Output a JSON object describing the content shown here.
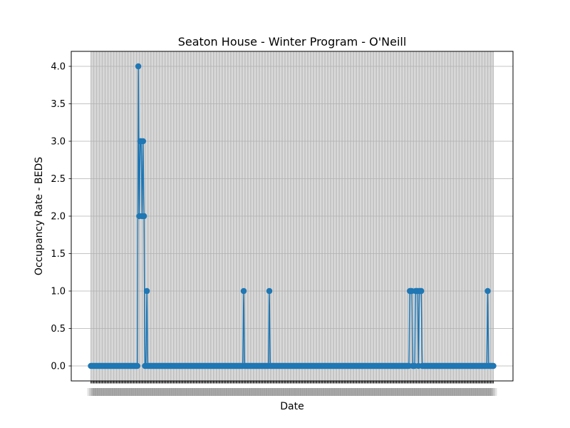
{
  "chart_data": {
    "type": "line",
    "title": "Seaton House - Winter Program - O'Neill",
    "xlabel": "Date",
    "ylabel": "Occupancy Rate - BEDS",
    "ylim": [
      -0.2,
      4.2
    ],
    "yticks": [
      0.0,
      0.5,
      1.0,
      1.5,
      2.0,
      2.5,
      3.0,
      3.5,
      4.0
    ],
    "ytick_labels": [
      "0.0",
      "0.5",
      "1.0",
      "1.5",
      "2.0",
      "2.5",
      "3.0",
      "3.5",
      "4.0"
    ],
    "grid": true,
    "x_ticklabels_note": "one tick per date; labels overlap and are illegible",
    "series": [
      {
        "color": "#1f77b4",
        "marker": "circle",
        "values": [
          0,
          0,
          0,
          0,
          0,
          0,
          0,
          0,
          0,
          0,
          0,
          0,
          0,
          0,
          0,
          0,
          0,
          0,
          0,
          0,
          0,
          0,
          0,
          0,
          0,
          0,
          0,
          0,
          0,
          0,
          0,
          0,
          0,
          0,
          0,
          0,
          0,
          0,
          0,
          0,
          0,
          0,
          0,
          0,
          0,
          0,
          0,
          0,
          0,
          0,
          4,
          2,
          3,
          3,
          2,
          3,
          2,
          0,
          0,
          1,
          0,
          0,
          0,
          0,
          0,
          0,
          0,
          0,
          0,
          0,
          0,
          0,
          0,
          0,
          0,
          0,
          0,
          0,
          0,
          0,
          0,
          0,
          0,
          0,
          0,
          0,
          0,
          0,
          0,
          0,
          0,
          0,
          0,
          0,
          0,
          0,
          0,
          0,
          0,
          0,
          0,
          0,
          0,
          0,
          0,
          0,
          0,
          0,
          0,
          0,
          0,
          0,
          0,
          0,
          0,
          0,
          0,
          0,
          0,
          0,
          0,
          0,
          0,
          0,
          0,
          0,
          0,
          0,
          0,
          0,
          0,
          0,
          0,
          0,
          0,
          0,
          0,
          0,
          0,
          0,
          0,
          0,
          0,
          0,
          0,
          0,
          0,
          0,
          0,
          0,
          0,
          0,
          0,
          0,
          0,
          0,
          0,
          0,
          0,
          0,
          0,
          1,
          0,
          0,
          0,
          0,
          0,
          0,
          0,
          0,
          0,
          0,
          0,
          0,
          0,
          0,
          0,
          0,
          0,
          0,
          0,
          0,
          0,
          0,
          0,
          0,
          0,
          0,
          1,
          0,
          0,
          0,
          0,
          0,
          0,
          0,
          0,
          0,
          0,
          0,
          0,
          0,
          0,
          0,
          0,
          0,
          0,
          0,
          0,
          0,
          0,
          0,
          0,
          0,
          0,
          0,
          0,
          0,
          0,
          0,
          0,
          0,
          0,
          0,
          0,
          0,
          0,
          0,
          0,
          0,
          0,
          0,
          0,
          0,
          0,
          0,
          0,
          0,
          0,
          0,
          0,
          0,
          0,
          0,
          0,
          0,
          0,
          0,
          0,
          0,
          0,
          0,
          0,
          0,
          0,
          0,
          0,
          0,
          0,
          0,
          0,
          0,
          0,
          0,
          0,
          0,
          0,
          0,
          0,
          0,
          0,
          0,
          0,
          0,
          0,
          0,
          0,
          0,
          0,
          0,
          0,
          0,
          0,
          0,
          0,
          0,
          0,
          0,
          0,
          0,
          0,
          0,
          0,
          0,
          0,
          0,
          0,
          0,
          0,
          0,
          0,
          0,
          0,
          0,
          0,
          0,
          0,
          0,
          0,
          0,
          0,
          0,
          0,
          0,
          0,
          0,
          0,
          0,
          0,
          0,
          0,
          0,
          0,
          0,
          0,
          0,
          0,
          0,
          0,
          0,
          0,
          0,
          0,
          0,
          0,
          0,
          1,
          1,
          1,
          0,
          0,
          0,
          1,
          1,
          1,
          0,
          1,
          1,
          1,
          0,
          0,
          0,
          0,
          0,
          0,
          0,
          0,
          0,
          0,
          0,
          0,
          0,
          0,
          0,
          0,
          0,
          0,
          0,
          0,
          0,
          0,
          0,
          0,
          0,
          0,
          0,
          0,
          0,
          0,
          0,
          0,
          0,
          0,
          0,
          0,
          0,
          0,
          0,
          0,
          0,
          0,
          0,
          0,
          0,
          0,
          0,
          0,
          0,
          0,
          0,
          0,
          0,
          0,
          0,
          0,
          0,
          0,
          0,
          0,
          0,
          0,
          0,
          0,
          0,
          0,
          0,
          0,
          0,
          1,
          0,
          0,
          0,
          0,
          0,
          0
        ]
      }
    ]
  }
}
